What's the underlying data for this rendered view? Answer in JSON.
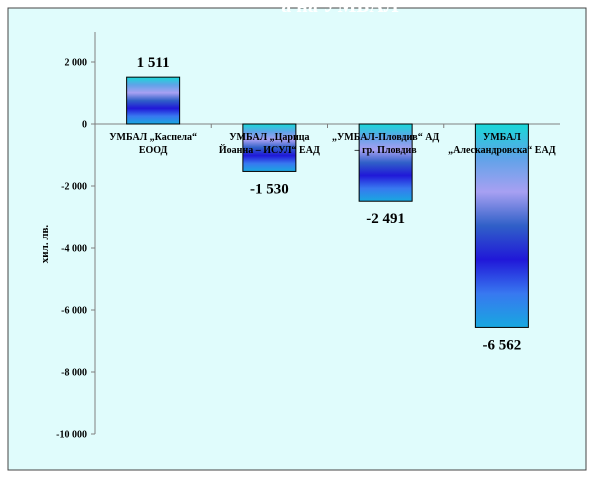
{
  "page": {
    "background": "#ffffff",
    "plot_background": "#e0fcfc",
    "border_color": "#444444"
  },
  "chart_data": {
    "type": "bar",
    "title": "а на УМБАЛ",
    "xlabel": "",
    "ylabel": "хил. лв.",
    "categories": [
      [
        "УМБАЛ „Каспела“",
        "ЕООД"
      ],
      [
        "УМБАЛ „Царица",
        "Йоанна – ИСУЛ“ ЕАД"
      ],
      [
        "„УМБАЛ-Пловдив“ АД",
        "– гр. Пловдив"
      ],
      [
        "УМБАЛ",
        "„Алескандровска“ ЕАД"
      ]
    ],
    "values": [
      1511,
      -1530,
      -2491,
      -6562
    ],
    "data_labels": [
      "1 511",
      "-1 530",
      "-2 491",
      "-6 562"
    ],
    "ylim": [
      -10000,
      2000
    ],
    "yticks": [
      2000,
      0,
      -2000,
      -4000,
      -6000,
      -8000,
      -10000
    ],
    "ytick_labels": [
      "2 000",
      "0",
      "-2 000",
      "-4 000",
      "-6 000",
      "-8 000",
      "-10 000"
    ],
    "grid": false,
    "legend": "none",
    "bar_gradient": [
      "#18d8d8",
      "#5fa3e8",
      "#a7a0f2",
      "#3060c8",
      "#2018d8",
      "#3878f0",
      "#18a8e0"
    ]
  }
}
